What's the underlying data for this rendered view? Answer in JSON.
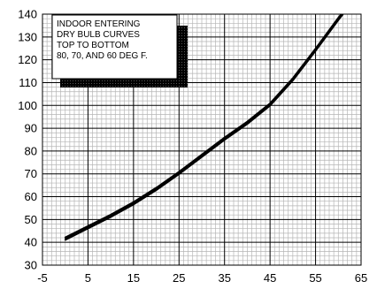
{
  "chart_data": {
    "type": "line",
    "title": "",
    "xlabel": "",
    "ylabel": "",
    "xlim": [
      -5,
      65
    ],
    "ylim": [
      30,
      140
    ],
    "x_ticks": [
      -5,
      5,
      15,
      25,
      35,
      45,
      55,
      65
    ],
    "y_ticks": [
      30,
      40,
      50,
      60,
      70,
      80,
      90,
      100,
      110,
      120,
      130,
      140
    ],
    "x_tick_labels": [
      "-5",
      "5",
      "15",
      "25",
      "35",
      "45",
      "55",
      "65"
    ],
    "y_tick_labels": [
      "30",
      "40",
      "50",
      "60",
      "70",
      "80",
      "90",
      "100",
      "110",
      "120",
      "130",
      "140"
    ],
    "grid": true,
    "annotation": {
      "lines": [
        "INDOOR ENTERING",
        "DRY BULB CURVES",
        "TOP TO BOTTOM",
        "80, 70, AND 60 DEG F."
      ],
      "placement": "top-left"
    },
    "series": [
      {
        "values": [
          [
            0,
            42.2
          ],
          [
            5,
            47.2
          ],
          [
            10,
            52.2
          ],
          [
            15,
            57.7
          ],
          [
            20,
            64.0
          ],
          [
            25,
            71.0
          ],
          [
            30,
            78.5
          ],
          [
            35,
            86.0
          ],
          [
            40,
            93.0
          ],
          [
            45,
            101.0
          ],
          [
            50,
            112.0
          ],
          [
            55,
            125.0
          ],
          [
            60,
            138.5
          ],
          [
            61,
            141.0
          ]
        ]
      },
      {
        "values": [
          [
            0,
            41.6
          ],
          [
            5,
            46.6
          ],
          [
            10,
            51.6
          ],
          [
            15,
            57.1
          ],
          [
            20,
            63.4
          ],
          [
            25,
            70.4
          ],
          [
            30,
            77.9
          ],
          [
            35,
            85.4
          ],
          [
            40,
            92.4
          ],
          [
            45,
            100.4
          ],
          [
            50,
            111.4
          ],
          [
            55,
            124.4
          ],
          [
            60,
            137.9
          ],
          [
            61,
            140.4
          ]
        ]
      },
      {
        "values": [
          [
            0,
            41.0
          ],
          [
            5,
            46.0
          ],
          [
            10,
            51.0
          ],
          [
            15,
            56.5
          ],
          [
            20,
            62.8
          ],
          [
            25,
            69.8
          ],
          [
            30,
            77.3
          ],
          [
            35,
            84.8
          ],
          [
            40,
            91.8
          ],
          [
            45,
            99.8
          ],
          [
            50,
            110.8
          ],
          [
            55,
            123.8
          ],
          [
            60,
            137.3
          ],
          [
            61,
            139.8
          ]
        ]
      }
    ]
  }
}
